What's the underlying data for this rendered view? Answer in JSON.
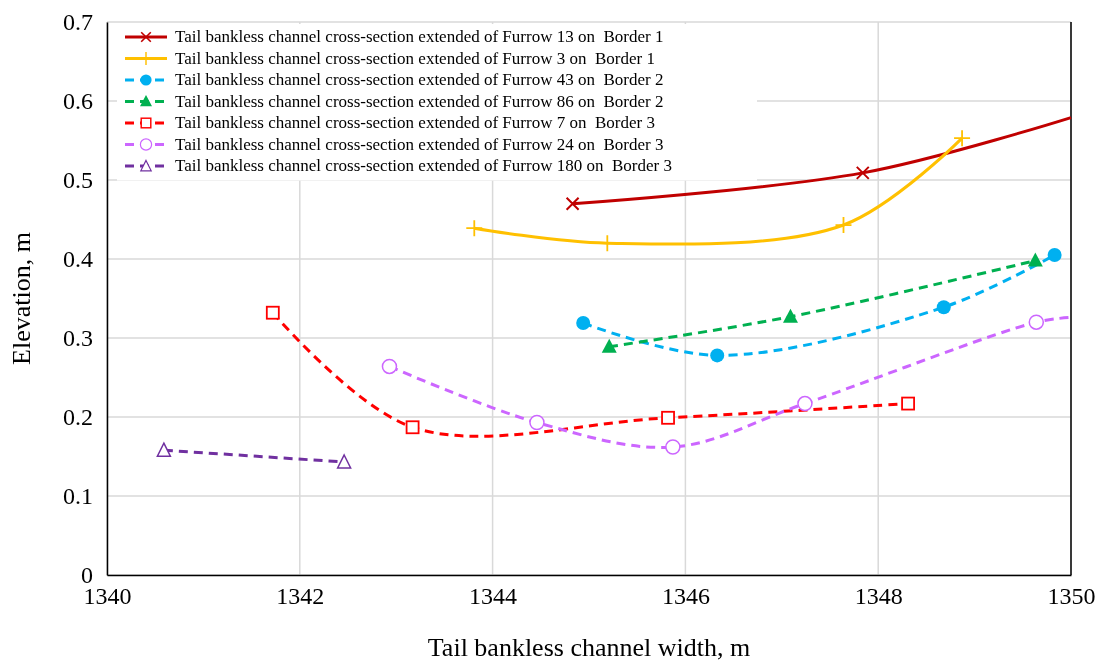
{
  "chart_data": {
    "type": "line",
    "xlabel": "Tail bankless channel width, m",
    "ylabel": "Elevation, m",
    "xlim": [
      1340,
      1350
    ],
    "ylim": [
      0,
      0.7
    ],
    "xticks": [
      1340,
      1342,
      1344,
      1346,
      1348,
      1350
    ],
    "yticks": [
      0,
      0.1,
      0.2,
      0.3,
      0.4,
      0.5,
      0.6,
      0.7
    ],
    "grid": true,
    "legend": "top left",
    "series": [
      {
        "name": "Tail bankless channel cross-section extended of Furrow 13 on  Border 1",
        "color": "#c00000",
        "marker": "cross",
        "line_style": "solid",
        "x": [
          1344.83,
          1347.84,
          1350
        ],
        "values": [
          0.47,
          0.509,
          0.579
        ]
      },
      {
        "name": "Tail bankless channel cross-section extended of Furrow 3 on  Border 1",
        "color": "#ffc000",
        "marker": "plus",
        "line_style": "solid",
        "x": [
          1343.81,
          1345.19,
          1347.64,
          1348.87
        ],
        "values": [
          0.439,
          0.42,
          0.443,
          0.553
        ]
      },
      {
        "name": "Tail bankless channel cross-section extended of Furrow 43 on  Border 2",
        "color": "#00b0f0",
        "marker": "circle",
        "line_style": "dashed",
        "x": [
          1344.94,
          1346.33,
          1348.68,
          1349.83
        ],
        "values": [
          0.319,
          0.278,
          0.339,
          0.405
        ]
      },
      {
        "name": "Tail bankless channel cross-section extended of Furrow 86 on  Border 2",
        "color": "#00b050",
        "marker": "triangle",
        "line_style": "dashed",
        "x": [
          1345.21,
          1347.09,
          1349.63
        ],
        "values": [
          0.289,
          0.327,
          0.398
        ]
      },
      {
        "name": "Tail bankless channel cross-section extended of Furrow 7 on  Border 3",
        "color": "#ff0000",
        "marker": "square",
        "line_style": "dashed",
        "x": [
          1341.72,
          1343.17,
          1345.82,
          1348.31
        ],
        "values": [
          0.332,
          0.187,
          0.199,
          0.217
        ]
      },
      {
        "name": "Tail bankless channel cross-section extended of Furrow 24 on  Border 3",
        "color": "#cc66ff",
        "marker": "circle-open",
        "line_style": "dashed",
        "x": [
          1342.93,
          1344.46,
          1345.87,
          1347.24,
          1349.64,
          1350
        ],
        "values": [
          0.264,
          0.193,
          0.162,
          0.217,
          0.32,
          0.326
        ]
      },
      {
        "name": "Tail bankless channel cross-section extended of Furrow 180 on  Border 3",
        "color": "#7030a0",
        "marker": "triangle-open",
        "line_style": "dashed",
        "x": [
          1340.59,
          1342.46
        ],
        "values": [
          0.158,
          0.143
        ]
      }
    ]
  }
}
